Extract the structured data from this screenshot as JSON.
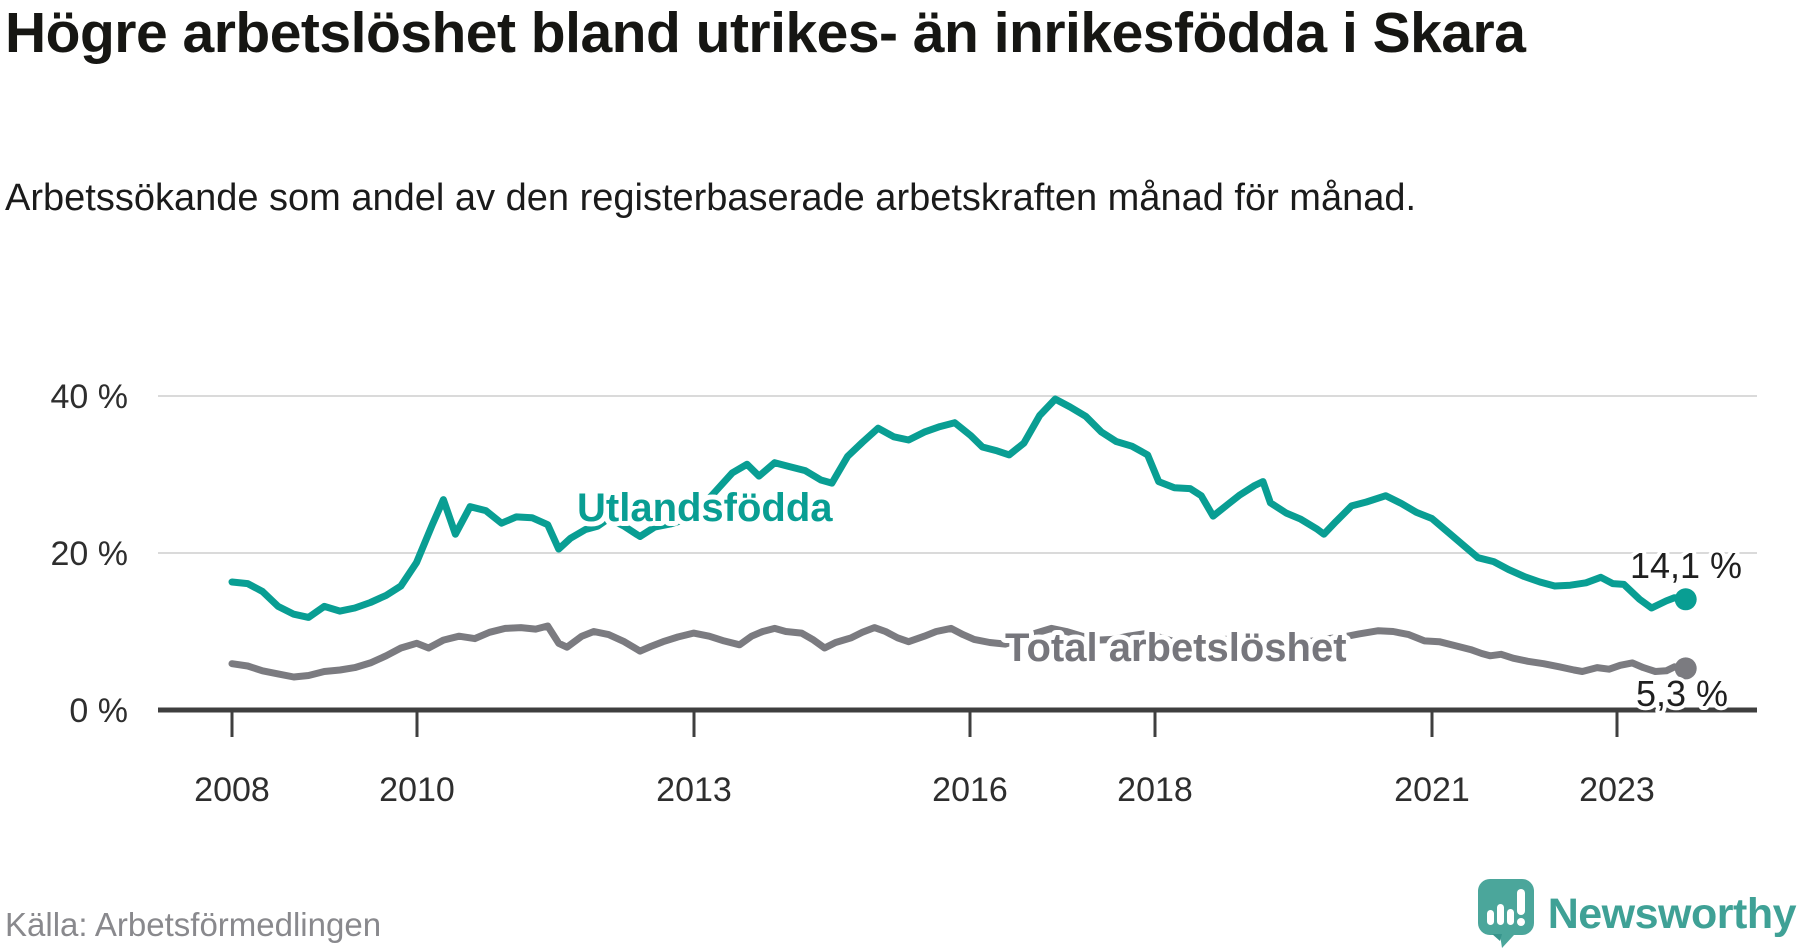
{
  "title": "Högre arbetslöshet bland utrikes- än inrikesfödda i Skara",
  "subtitle": "Arbetssökande som andel av den registerbaserade arbetskraften månad för månad.",
  "source": "Källa: Arbetsförmedlingen",
  "branding": {
    "name": "Newsworthy",
    "icon": "speech-bubble-bar-chart-icon",
    "icon_color": "#4ba69b",
    "text_color": "#3fa196"
  },
  "colors": {
    "background": "#ffffff",
    "grid": "#dadada",
    "axis": "#3f3f3f",
    "utlandsfodda": "#099e93",
    "total": "#7b7b80",
    "tick_text": "#2e2e2e",
    "end_label_text": "#1f1f1f"
  },
  "chart_data": {
    "type": "line",
    "title": "Högre arbetslöshet bland utrikes- än inrikesfödda i Skara",
    "subtitle": "Arbetssökande som andel av den registerbaserade arbetskraften månad för månad.",
    "unit": "%",
    "grid": "horizontal",
    "x_axis": {
      "ticks": [
        2008,
        2010,
        2013,
        2016,
        2018,
        2021,
        2023
      ],
      "labels": [
        "2008",
        "2010",
        "2013",
        "2016",
        "2018",
        "2021",
        "2023"
      ],
      "range_years": [
        2008,
        2023.75
      ]
    },
    "y_axis": {
      "ticks": [
        0,
        20,
        40
      ],
      "labels": [
        "0 %",
        "20 %",
        "40 %"
      ],
      "range": [
        0,
        42
      ]
    },
    "series": [
      {
        "name": "Utlandsfödda",
        "color": "#099e93",
        "end_label": "14,1 %",
        "last_value": 14.1,
        "points": [
          [
            2008.0,
            16.3
          ],
          [
            2008.17,
            16.1
          ],
          [
            2008.33,
            15.1
          ],
          [
            2008.5,
            13.2
          ],
          [
            2008.67,
            12.2
          ],
          [
            2008.83,
            11.8
          ],
          [
            2009.0,
            13.2
          ],
          [
            2009.17,
            12.6
          ],
          [
            2009.33,
            13.0
          ],
          [
            2009.5,
            13.7
          ],
          [
            2009.67,
            14.6
          ],
          [
            2009.83,
            15.8
          ],
          [
            2010.0,
            18.8
          ],
          [
            2010.17,
            23.6
          ],
          [
            2010.29,
            26.8
          ],
          [
            2010.42,
            22.4
          ],
          [
            2010.58,
            25.9
          ],
          [
            2010.75,
            25.4
          ],
          [
            2010.92,
            23.8
          ],
          [
            2011.08,
            24.6
          ],
          [
            2011.25,
            24.5
          ],
          [
            2011.42,
            23.6
          ],
          [
            2011.54,
            20.5
          ],
          [
            2011.67,
            21.9
          ],
          [
            2011.83,
            23.0
          ],
          [
            2011.96,
            23.4
          ],
          [
            2012.08,
            24.4
          ],
          [
            2012.25,
            23.4
          ],
          [
            2012.42,
            22.1
          ],
          [
            2012.58,
            23.3
          ],
          [
            2012.75,
            23.7
          ],
          [
            2012.92,
            24.3
          ],
          [
            2013.08,
            25.8
          ],
          [
            2013.25,
            28.0
          ],
          [
            2013.42,
            30.2
          ],
          [
            2013.58,
            31.3
          ],
          [
            2013.71,
            29.8
          ],
          [
            2013.88,
            31.5
          ],
          [
            2014.04,
            31.0
          ],
          [
            2014.21,
            30.5
          ],
          [
            2014.38,
            29.3
          ],
          [
            2014.5,
            28.9
          ],
          [
            2014.67,
            32.3
          ],
          [
            2014.83,
            34.1
          ],
          [
            2015.0,
            35.9
          ],
          [
            2015.17,
            34.8
          ],
          [
            2015.33,
            34.4
          ],
          [
            2015.5,
            35.4
          ],
          [
            2015.67,
            36.1
          ],
          [
            2015.83,
            36.6
          ],
          [
            2016.0,
            35.0
          ],
          [
            2016.13,
            33.5
          ],
          [
            2016.29,
            33.0
          ],
          [
            2016.42,
            32.5
          ],
          [
            2016.58,
            34.0
          ],
          [
            2016.75,
            37.5
          ],
          [
            2016.92,
            39.6
          ],
          [
            2017.08,
            38.6
          ],
          [
            2017.25,
            37.4
          ],
          [
            2017.42,
            35.4
          ],
          [
            2017.58,
            34.2
          ],
          [
            2017.75,
            33.6
          ],
          [
            2017.92,
            32.5
          ],
          [
            2018.04,
            29.1
          ],
          [
            2018.21,
            28.3
          ],
          [
            2018.38,
            28.2
          ],
          [
            2018.5,
            27.3
          ],
          [
            2018.63,
            24.7
          ],
          [
            2018.79,
            26.2
          ],
          [
            2018.92,
            27.4
          ],
          [
            2019.08,
            28.6
          ],
          [
            2019.17,
            29.1
          ],
          [
            2019.25,
            26.4
          ],
          [
            2019.42,
            25.1
          ],
          [
            2019.58,
            24.3
          ],
          [
            2019.75,
            23.1
          ],
          [
            2019.83,
            22.4
          ],
          [
            2019.96,
            24.0
          ],
          [
            2020.13,
            26.0
          ],
          [
            2020.29,
            26.5
          ],
          [
            2020.5,
            27.3
          ],
          [
            2020.67,
            26.3
          ],
          [
            2020.83,
            25.2
          ],
          [
            2021.0,
            24.4
          ],
          [
            2021.17,
            22.7
          ],
          [
            2021.33,
            21.1
          ],
          [
            2021.5,
            19.4
          ],
          [
            2021.67,
            18.9
          ],
          [
            2021.83,
            17.9
          ],
          [
            2022.0,
            17.0
          ],
          [
            2022.17,
            16.3
          ],
          [
            2022.33,
            15.8
          ],
          [
            2022.5,
            15.9
          ],
          [
            2022.67,
            16.2
          ],
          [
            2022.83,
            16.9
          ],
          [
            2022.96,
            16.1
          ],
          [
            2023.08,
            16.0
          ],
          [
            2023.25,
            14.1
          ],
          [
            2023.38,
            13.0
          ],
          [
            2023.54,
            13.9
          ],
          [
            2023.63,
            14.3
          ],
          [
            2023.75,
            14.1
          ]
        ]
      },
      {
        "name": "Total arbetslöshet",
        "color": "#7b7b80",
        "end_label": "5,3 %",
        "last_value": 5.3,
        "points": [
          [
            2008.0,
            5.9
          ],
          [
            2008.17,
            5.6
          ],
          [
            2008.33,
            5.0
          ],
          [
            2008.5,
            4.6
          ],
          [
            2008.67,
            4.2
          ],
          [
            2008.83,
            4.4
          ],
          [
            2009.0,
            4.9
          ],
          [
            2009.17,
            5.1
          ],
          [
            2009.33,
            5.4
          ],
          [
            2009.5,
            6.0
          ],
          [
            2009.67,
            6.9
          ],
          [
            2009.83,
            7.9
          ],
          [
            2010.0,
            8.5
          ],
          [
            2010.13,
            7.9
          ],
          [
            2010.29,
            8.9
          ],
          [
            2010.46,
            9.4
          ],
          [
            2010.63,
            9.1
          ],
          [
            2010.79,
            9.9
          ],
          [
            2010.96,
            10.4
          ],
          [
            2011.13,
            10.5
          ],
          [
            2011.29,
            10.3
          ],
          [
            2011.42,
            10.7
          ],
          [
            2011.54,
            8.5
          ],
          [
            2011.63,
            8.0
          ],
          [
            2011.79,
            9.4
          ],
          [
            2011.92,
            10.0
          ],
          [
            2012.08,
            9.6
          ],
          [
            2012.25,
            8.7
          ],
          [
            2012.42,
            7.5
          ],
          [
            2012.54,
            8.1
          ],
          [
            2012.67,
            8.7
          ],
          [
            2012.83,
            9.3
          ],
          [
            2013.0,
            9.8
          ],
          [
            2013.17,
            9.4
          ],
          [
            2013.33,
            8.8
          ],
          [
            2013.5,
            8.3
          ],
          [
            2013.63,
            9.4
          ],
          [
            2013.75,
            10.0
          ],
          [
            2013.88,
            10.4
          ],
          [
            2014.0,
            10.0
          ],
          [
            2014.17,
            9.8
          ],
          [
            2014.29,
            9.0
          ],
          [
            2014.42,
            7.9
          ],
          [
            2014.54,
            8.6
          ],
          [
            2014.71,
            9.2
          ],
          [
            2014.83,
            9.9
          ],
          [
            2014.96,
            10.5
          ],
          [
            2015.08,
            10.0
          ],
          [
            2015.21,
            9.2
          ],
          [
            2015.33,
            8.7
          ],
          [
            2015.5,
            9.4
          ],
          [
            2015.63,
            10.0
          ],
          [
            2015.79,
            10.4
          ],
          [
            2015.92,
            9.6
          ],
          [
            2016.04,
            9.0
          ],
          [
            2016.21,
            8.6
          ],
          [
            2016.38,
            8.4
          ],
          [
            2016.54,
            9.0
          ],
          [
            2016.71,
            9.8
          ],
          [
            2016.88,
            10.4
          ],
          [
            2017.04,
            10.0
          ],
          [
            2017.21,
            9.4
          ],
          [
            2017.38,
            8.9
          ],
          [
            2017.54,
            9.0
          ],
          [
            2017.71,
            9.4
          ],
          [
            2017.88,
            9.7
          ],
          [
            2018.04,
            9.3
          ],
          [
            2018.21,
            8.7
          ],
          [
            2018.38,
            8.4
          ],
          [
            2018.54,
            8.6
          ],
          [
            2018.71,
            8.9
          ],
          [
            2018.88,
            9.2
          ],
          [
            2019.04,
            8.9
          ],
          [
            2019.21,
            8.4
          ],
          [
            2019.38,
            8.2
          ],
          [
            2019.54,
            8.5
          ],
          [
            2019.71,
            8.8
          ],
          [
            2019.88,
            9.1
          ],
          [
            2020.04,
            9.3
          ],
          [
            2020.21,
            9.7
          ],
          [
            2020.42,
            10.1
          ],
          [
            2020.58,
            10.0
          ],
          [
            2020.75,
            9.6
          ],
          [
            2020.92,
            8.8
          ],
          [
            2021.08,
            8.7
          ],
          [
            2021.25,
            8.2
          ],
          [
            2021.42,
            7.7
          ],
          [
            2021.54,
            7.2
          ],
          [
            2021.63,
            6.9
          ],
          [
            2021.75,
            7.1
          ],
          [
            2021.88,
            6.6
          ],
          [
            2022.04,
            6.2
          ],
          [
            2022.21,
            5.9
          ],
          [
            2022.38,
            5.5
          ],
          [
            2022.54,
            5.1
          ],
          [
            2022.63,
            4.9
          ],
          [
            2022.79,
            5.4
          ],
          [
            2022.92,
            5.2
          ],
          [
            2023.04,
            5.7
          ],
          [
            2023.17,
            6.0
          ],
          [
            2023.29,
            5.4
          ],
          [
            2023.42,
            4.9
          ],
          [
            2023.54,
            5.0
          ],
          [
            2023.63,
            5.5
          ],
          [
            2023.75,
            5.3
          ]
        ]
      }
    ]
  }
}
